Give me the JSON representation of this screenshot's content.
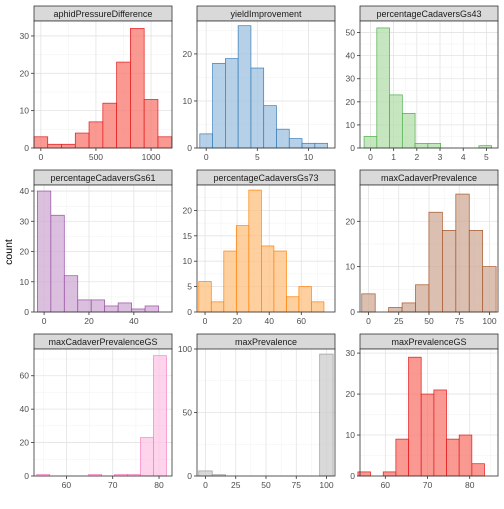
{
  "figure": {
    "ylabel": "count",
    "xlabel": ""
  },
  "chart_data": [
    {
      "type": "bar",
      "title": "aphidPressureDifference",
      "fill": "#F8766D",
      "line": "#E41A1C",
      "bin_width": 125,
      "bins": [
        {
          "x": 0,
          "count": 3
        },
        {
          "x": 125,
          "count": 1
        },
        {
          "x": 250,
          "count": 1
        },
        {
          "x": 375,
          "count": 4
        },
        {
          "x": 500,
          "count": 7
        },
        {
          "x": 625,
          "count": 12
        },
        {
          "x": 750,
          "count": 23
        },
        {
          "x": 875,
          "count": 32
        },
        {
          "x": 1000,
          "count": 13
        },
        {
          "x": 1125,
          "count": 3
        }
      ],
      "xlim": [
        -62,
        1190
      ],
      "ylim": [
        0,
        34
      ],
      "xticks": [
        0,
        500,
        1000
      ],
      "xtick_labels": [
        "0",
        "500",
        "1000"
      ],
      "yticks": [
        0,
        10,
        20,
        30
      ],
      "ytick_labels": [
        "0",
        "10",
        "20",
        "30"
      ]
    },
    {
      "type": "bar",
      "title": "yieldImprovement",
      "fill": "#9DC0E0",
      "line": "#377EB8",
      "bin_width": 1.25,
      "bins": [
        {
          "x": 0,
          "count": 3
        },
        {
          "x": 1.25,
          "count": 18
        },
        {
          "x": 2.5,
          "count": 19
        },
        {
          "x": 3.75,
          "count": 26
        },
        {
          "x": 5,
          "count": 17
        },
        {
          "x": 6.25,
          "count": 9
        },
        {
          "x": 7.5,
          "count": 4
        },
        {
          "x": 8.75,
          "count": 2
        },
        {
          "x": 10,
          "count": 1
        },
        {
          "x": 11.25,
          "count": 1
        }
      ],
      "xlim": [
        -0.9,
        12.6
      ],
      "ylim": [
        0,
        27
      ],
      "xticks": [
        0,
        5,
        10
      ],
      "xtick_labels": [
        "0",
        "5",
        "10"
      ],
      "yticks": [
        0,
        10,
        20
      ],
      "ytick_labels": [
        "0",
        "10",
        "20"
      ]
    },
    {
      "type": "bar",
      "title": "percentageCadaversGs43",
      "fill": "#B3DDAA",
      "line": "#4DAF4A",
      "bin_width": 0.55,
      "bins": [
        {
          "x": 0,
          "count": 5
        },
        {
          "x": 0.55,
          "count": 52
        },
        {
          "x": 1.1,
          "count": 23
        },
        {
          "x": 1.65,
          "count": 15
        },
        {
          "x": 2.2,
          "count": 2
        },
        {
          "x": 2.75,
          "count": 2
        },
        {
          "x": 3.3,
          "count": 0
        },
        {
          "x": 3.85,
          "count": 0
        },
        {
          "x": 4.4,
          "count": 0
        },
        {
          "x": 4.95,
          "count": 1
        }
      ],
      "xlim": [
        -0.45,
        5.5
      ],
      "ylim": [
        0,
        55
      ],
      "xticks": [
        0,
        1,
        2,
        3,
        4,
        5
      ],
      "xtick_labels": [
        "0",
        "1",
        "2",
        "3",
        "4",
        "5"
      ],
      "yticks": [
        0,
        10,
        20,
        30,
        40,
        50
      ],
      "ytick_labels": [
        "0",
        "10",
        "20",
        "30",
        "40",
        "50"
      ]
    },
    {
      "type": "bar",
      "title": "percentageCadaversGs61",
      "fill": "#CFA9D3",
      "line": "#984EA3",
      "bin_width": 6,
      "bins": [
        {
          "x": 0,
          "count": 40
        },
        {
          "x": 6,
          "count": 32
        },
        {
          "x": 12,
          "count": 12
        },
        {
          "x": 18,
          "count": 4
        },
        {
          "x": 24,
          "count": 4
        },
        {
          "x": 30,
          "count": 2
        },
        {
          "x": 36,
          "count": 3
        },
        {
          "x": 42,
          "count": 1
        },
        {
          "x": 48,
          "count": 2
        }
      ],
      "xlim": [
        -4.5,
        57
      ],
      "ylim": [
        0,
        42
      ],
      "xticks": [
        0,
        20,
        40
      ],
      "xtick_labels": [
        "0",
        "20",
        "40"
      ],
      "yticks": [
        0,
        10,
        20,
        30,
        40
      ],
      "ytick_labels": [
        "0",
        "10",
        "20",
        "30",
        "40"
      ]
    },
    {
      "type": "bar",
      "title": "percentageCadaversGs73",
      "fill": "#FFC07F",
      "line": "#FF7F00",
      "bin_width": 7.8,
      "bins": [
        {
          "x": 0,
          "count": 6
        },
        {
          "x": 7.8,
          "count": 2
        },
        {
          "x": 15.6,
          "count": 12
        },
        {
          "x": 23.4,
          "count": 17
        },
        {
          "x": 31.2,
          "count": 24
        },
        {
          "x": 39,
          "count": 13
        },
        {
          "x": 46.8,
          "count": 12
        },
        {
          "x": 54.6,
          "count": 3
        },
        {
          "x": 62.4,
          "count": 5
        },
        {
          "x": 70.2,
          "count": 2
        }
      ],
      "xlim": [
        -5,
        81
      ],
      "ylim": [
        0,
        25
      ],
      "xticks": [
        0,
        20,
        40,
        60
      ],
      "xtick_labels": [
        "0",
        "20",
        "40",
        "60"
      ],
      "yticks": [
        0,
        5,
        10,
        15,
        20
      ],
      "ytick_labels": [
        "0",
        "5",
        "10",
        "15",
        "20"
      ]
    },
    {
      "type": "bar",
      "title": "maxCadaverPrevalence",
      "fill": "#CFAA95",
      "line": "#A65628",
      "bin_width": 11.1,
      "bins": [
        {
          "x": 0,
          "count": 4
        },
        {
          "x": 11.1,
          "count": 0
        },
        {
          "x": 22.2,
          "count": 1
        },
        {
          "x": 33.3,
          "count": 2
        },
        {
          "x": 44.4,
          "count": 6
        },
        {
          "x": 55.5,
          "count": 22
        },
        {
          "x": 66.6,
          "count": 18
        },
        {
          "x": 77.7,
          "count": 26
        },
        {
          "x": 88.8,
          "count": 18
        },
        {
          "x": 99.9,
          "count": 10
        }
      ],
      "xlim": [
        -7,
        107
      ],
      "ylim": [
        0,
        28
      ],
      "xticks": [
        0,
        25,
        50,
        75,
        100
      ],
      "xtick_labels": [
        "0",
        "25",
        "50",
        "75",
        "100"
      ],
      "yticks": [
        0,
        10,
        20
      ],
      "ytick_labels": [
        "0",
        "10",
        "20"
      ]
    },
    {
      "type": "bar",
      "title": "maxCadaverPrevalenceGS",
      "fill": "#FDC6E5",
      "line": "#F781BF",
      "bin_width": 2.8,
      "bins": [
        {
          "x": 55,
          "count": 1
        },
        {
          "x": 57.8,
          "count": 0
        },
        {
          "x": 60.6,
          "count": 0
        },
        {
          "x": 63.4,
          "count": 0
        },
        {
          "x": 66.2,
          "count": 1
        },
        {
          "x": 69,
          "count": 0
        },
        {
          "x": 71.8,
          "count": 1
        },
        {
          "x": 74.6,
          "count": 1
        },
        {
          "x": 77.4,
          "count": 23
        },
        {
          "x": 80.2,
          "count": 72
        }
      ],
      "xlim": [
        53,
        82.8
      ],
      "ylim": [
        0,
        76
      ],
      "xticks": [
        60,
        70,
        80
      ],
      "xtick_labels": [
        "60",
        "70",
        "80"
      ],
      "yticks": [
        0,
        20,
        40,
        60
      ],
      "ytick_labels": [
        "0",
        "20",
        "40",
        "60"
      ]
    },
    {
      "type": "bar",
      "title": "maxPrevalence",
      "fill": "#CCCCCC",
      "line": "#999999",
      "bin_width": 11.1,
      "bins": [
        {
          "x": 0,
          "count": 4
        },
        {
          "x": 11.1,
          "count": 1
        },
        {
          "x": 22.2,
          "count": 0
        },
        {
          "x": 33.3,
          "count": 0
        },
        {
          "x": 44.4,
          "count": 0
        },
        {
          "x": 55.5,
          "count": 0
        },
        {
          "x": 66.6,
          "count": 0
        },
        {
          "x": 77.7,
          "count": 0
        },
        {
          "x": 88.8,
          "count": 0
        },
        {
          "x": 99.9,
          "count": 96
        }
      ],
      "xlim": [
        -7,
        107
      ],
      "ylim": [
        0,
        100
      ],
      "xticks": [
        0,
        25,
        50,
        75,
        100
      ],
      "xtick_labels": [
        "0",
        "25",
        "50",
        "75",
        "100"
      ],
      "yticks": [
        0,
        50,
        100
      ],
      "ytick_labels": [
        "0",
        "50",
        "100"
      ]
    },
    {
      "type": "bar",
      "title": "maxPrevalenceGS",
      "fill": "#F8766D",
      "line": "#E41A1C",
      "bin_width": 3,
      "bins": [
        {
          "x": 55,
          "count": 1
        },
        {
          "x": 58,
          "count": 0
        },
        {
          "x": 61,
          "count": 1
        },
        {
          "x": 64,
          "count": 9
        },
        {
          "x": 67,
          "count": 29
        },
        {
          "x": 70,
          "count": 20
        },
        {
          "x": 73,
          "count": 21
        },
        {
          "x": 76,
          "count": 9
        },
        {
          "x": 79,
          "count": 10
        },
        {
          "x": 82,
          "count": 3
        }
      ],
      "xlim": [
        54,
        86.7
      ],
      "ylim": [
        0,
        31
      ],
      "xticks": [
        60,
        70,
        80
      ],
      "xtick_labels": [
        "60",
        "70",
        "80"
      ],
      "yticks": [
        0,
        10,
        20,
        30
      ],
      "ytick_labels": [
        "0",
        "10",
        "20",
        "30"
      ]
    }
  ]
}
